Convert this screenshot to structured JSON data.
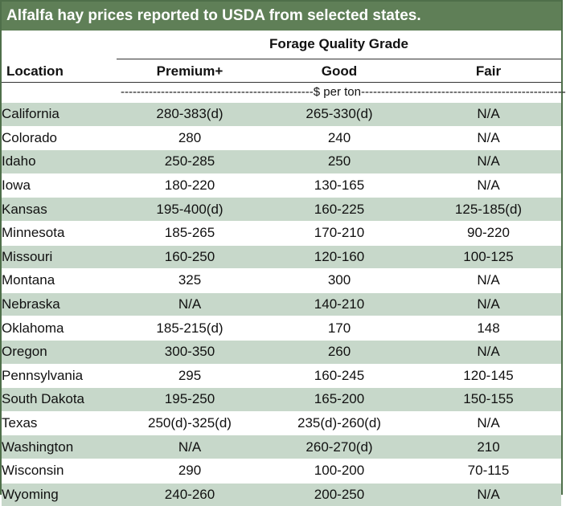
{
  "title": "Alfalfa hay prices reported to USDA from selected states.",
  "group_header": "Forage Quality Grade",
  "columns": {
    "location": "Location",
    "premium": "Premium+",
    "good": "Good",
    "fair": "Fair"
  },
  "units_label": "------------------------------------------------$ per ton---------------------------------------------------",
  "rows": [
    {
      "location": "California",
      "premium": "280-383(d)",
      "good": "265-330(d)",
      "fair": "N/A"
    },
    {
      "location": "Colorado",
      "premium": "280",
      "good": "240",
      "fair": "N/A"
    },
    {
      "location": "Idaho",
      "premium": "250-285",
      "good": "250",
      "fair": "N/A"
    },
    {
      "location": "Iowa",
      "premium": "180-220",
      "good": "130-165",
      "fair": "N/A"
    },
    {
      "location": "Kansas",
      "premium": "195-400(d)",
      "good": "160-225",
      "fair": "125-185(d)"
    },
    {
      "location": "Minnesota",
      "premium": "185-265",
      "good": "170-210",
      "fair": "90-220"
    },
    {
      "location": "Missouri",
      "premium": "160-250",
      "good": "120-160",
      "fair": "100-125"
    },
    {
      "location": "Montana",
      "premium": "325",
      "good": "300",
      "fair": "N/A"
    },
    {
      "location": "Nebraska",
      "premium": "N/A",
      "good": "140-210",
      "fair": "N/A"
    },
    {
      "location": "Oklahoma",
      "premium": "185-215(d)",
      "good": "170",
      "fair": "148"
    },
    {
      "location": "Oregon",
      "premium": "300-350",
      "good": "260",
      "fair": "N/A"
    },
    {
      "location": "Pennsylvania",
      "premium": "295",
      "good": "160-245",
      "fair": "120-145"
    },
    {
      "location": "South Dakota",
      "premium": "195-250",
      "good": "165-200",
      "fair": "150-155"
    },
    {
      "location": "Texas",
      "premium": "250(d)-325(d)",
      "good": "235(d)-260(d)",
      "fair": "N/A"
    },
    {
      "location": "Washington",
      "premium": "N/A",
      "good": "260-270(d)",
      "fair": "210"
    },
    {
      "location": "Wisconsin",
      "premium": "290",
      "good": "100-200",
      "fair": "70-115"
    },
    {
      "location": "Wyoming",
      "premium": "240-260",
      "good": "200-250",
      "fair": "N/A"
    }
  ],
  "colors": {
    "title_bg": "#5f7f57",
    "border": "#4f6f4a",
    "stripe": "#c7d8ca"
  }
}
